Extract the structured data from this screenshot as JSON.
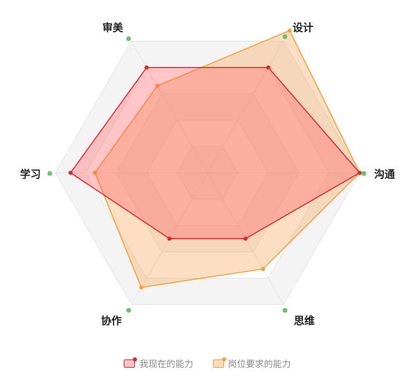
{
  "chart_data": {
    "type": "radar",
    "axes": [
      "审美",
      "设计",
      "沟通",
      "思维",
      "协作",
      "学习"
    ],
    "max": 10,
    "series": [
      {
        "name": "我现在的能力",
        "values": [
          8,
          8,
          10,
          5,
          5,
          9
        ],
        "color": "#e0262b",
        "fill": "rgba(255,90,95,0.35)"
      },
      {
        "name": "岗位要求的能力",
        "values": [
          6.6,
          10.8,
          10,
          7.3,
          8.7,
          7.4
        ],
        "color": "#f5a03a",
        "fill": "rgba(245,160,80,0.35)"
      }
    ],
    "axis_dot_color": "#6cc36c",
    "legend": [
      "我现在的能力",
      "岗位要求的能力"
    ]
  }
}
